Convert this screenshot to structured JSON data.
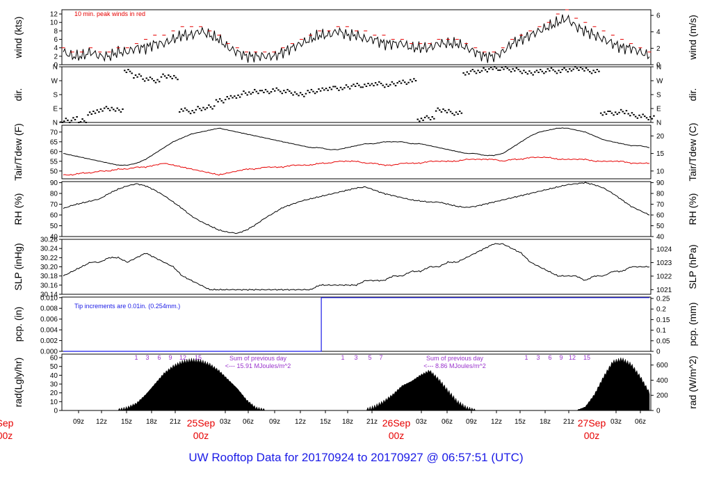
{
  "title": "UW Rooftop Data for 20170924  to  20170927 @ 06:57:51  (UTC)",
  "colors": {
    "black": "#000000",
    "red": "#e60000",
    "blue": "#1a1ae6",
    "purple": "#9932cc"
  },
  "chart_data": [
    {
      "type": "line",
      "ylabel": "wind (kts)",
      "ylabel_right": "wind (m/s)",
      "yticks": [
        0,
        2,
        4,
        6,
        8,
        10,
        12
      ],
      "yticks_right": [
        0,
        2,
        4,
        6
      ],
      "ylim": [
        0,
        13
      ],
      "annotations": [
        "10 min. peak winds in red"
      ],
      "series": [
        {
          "role": "wind",
          "color": "#000000",
          "values": [
            3,
            2,
            2,
            3,
            2,
            2,
            3,
            3,
            4,
            4,
            5,
            5,
            6,
            7,
            7,
            8,
            7,
            6,
            4,
            3,
            2,
            2,
            2,
            2,
            3,
            4,
            5,
            6,
            7,
            7,
            8,
            7,
            7,
            6,
            6,
            5,
            5,
            5,
            4,
            4,
            4,
            5,
            5,
            5,
            4,
            3,
            2,
            2,
            3,
            5,
            6,
            7,
            8,
            9,
            10,
            11,
            9,
            8,
            7,
            6,
            5,
            4,
            4,
            3,
            2
          ]
        },
        {
          "role": "peak",
          "color": "#e60000",
          "values": [
            4,
            3,
            3,
            4,
            3,
            3,
            4,
            4,
            5,
            6,
            7,
            7,
            8,
            9,
            9,
            9,
            8,
            7,
            5,
            4,
            3,
            3,
            3,
            3,
            4,
            5,
            6,
            7,
            8,
            8,
            9,
            9,
            8,
            8,
            7,
            7,
            6,
            6,
            5,
            5,
            5,
            6,
            6,
            6,
            5,
            4,
            3,
            3,
            4,
            6,
            7,
            8,
            9,
            10,
            12,
            13,
            11,
            10,
            9,
            8,
            7,
            6,
            5,
            4,
            3
          ]
        }
      ]
    },
    {
      "type": "scatter",
      "ylabel": "dir.",
      "ylabel_right": "dir.",
      "yticks": [
        "N",
        "E",
        "S",
        "W",
        "N"
      ],
      "ylim": [
        0,
        360
      ],
      "values": [
        20,
        30,
        10,
        60,
        80,
        90,
        80,
        330,
        300,
        280,
        270,
        300,
        290,
        80,
        70,
        90,
        100,
        140,
        160,
        170,
        190,
        200,
        200,
        210,
        200,
        190,
        180,
        200,
        210,
        220,
        220,
        230,
        240,
        240,
        250,
        240,
        250,
        260,
        270,
        20,
        30,
        80,
        70,
        60,
        320,
        330,
        340,
        350,
        350,
        340,
        330,
        320,
        330,
        340,
        330,
        340,
        350,
        340,
        330,
        60,
        60,
        70,
        50,
        40,
        30
      ]
    },
    {
      "type": "line",
      "ylabel": "Tair/Tdew (F)",
      "ylabel_right": "Tair/Tdew (C)",
      "yticks": [
        50,
        55,
        60,
        65,
        70
      ],
      "yticks_right": [
        10,
        15,
        20
      ],
      "ylim": [
        46,
        73.5
      ],
      "series": [
        {
          "role": "air temperature",
          "color": "#000000",
          "values": [
            59,
            58,
            57,
            56,
            55,
            54,
            53,
            53,
            54,
            56,
            59,
            62,
            65,
            67,
            69,
            70,
            71,
            72,
            71,
            70,
            69,
            68,
            67,
            66,
            65,
            64,
            63,
            62,
            62,
            61,
            61,
            62,
            63,
            64,
            64,
            65,
            65,
            65,
            64,
            64,
            63,
            62,
            61,
            60,
            59,
            59,
            58,
            58,
            59,
            62,
            65,
            68,
            70,
            71,
            72,
            72,
            71,
            70,
            68,
            66,
            65,
            64,
            63,
            63,
            62
          ]
        },
        {
          "role": "dew point",
          "color": "#e60000",
          "values": [
            48,
            48,
            49,
            49,
            50,
            50,
            51,
            51,
            52,
            52,
            53,
            54,
            53,
            52,
            51,
            50,
            49,
            48,
            49,
            50,
            51,
            51,
            52,
            52,
            52,
            53,
            53,
            53,
            54,
            54,
            55,
            55,
            55,
            54,
            54,
            53,
            53,
            54,
            54,
            54,
            55,
            55,
            55,
            55,
            56,
            56,
            56,
            56,
            55,
            56,
            56,
            57,
            57,
            57,
            56,
            56,
            56,
            56,
            55,
            55,
            55,
            55,
            54,
            54,
            54
          ]
        }
      ]
    },
    {
      "type": "line",
      "ylabel": "RH (%)",
      "ylabel_right": "RH (%)",
      "yticks": [
        40,
        50,
        60,
        70,
        80,
        90
      ],
      "ylim": [
        40,
        91
      ],
      "series": [
        {
          "role": "relative humidity",
          "color": "#000000",
          "values": [
            66,
            69,
            71,
            73,
            75,
            80,
            84,
            87,
            89,
            87,
            83,
            78,
            72,
            66,
            59,
            54,
            50,
            46,
            44,
            43,
            46,
            51,
            57,
            62,
            67,
            70,
            73,
            75,
            77,
            79,
            81,
            83,
            85,
            86,
            83,
            80,
            78,
            76,
            74,
            73,
            72,
            72,
            70,
            68,
            67,
            68,
            70,
            72,
            74,
            76,
            78,
            80,
            82,
            84,
            86,
            88,
            89,
            90,
            88,
            85,
            80,
            74,
            68,
            64,
            60
          ]
        }
      ]
    },
    {
      "type": "line",
      "ylabel": "SLP (inHg)",
      "ylabel_right": "SLP (hPa)",
      "yticks": [
        30.14,
        30.16,
        30.18,
        30.2,
        30.22,
        30.24,
        30.26
      ],
      "yticks_right": [
        1021,
        1022,
        1023,
        1024
      ],
      "ylim": [
        30.14,
        30.26
      ],
      "series": [
        {
          "role": "sea level pressure",
          "color": "#000000",
          "values": [
            30.18,
            30.19,
            30.2,
            30.21,
            30.21,
            30.22,
            30.22,
            30.21,
            30.22,
            30.23,
            30.22,
            30.21,
            30.2,
            30.18,
            30.17,
            30.16,
            30.15,
            30.15,
            30.15,
            30.15,
            30.15,
            30.15,
            30.15,
            30.15,
            30.15,
            30.15,
            30.15,
            30.15,
            30.16,
            30.16,
            30.16,
            30.16,
            30.16,
            30.17,
            30.17,
            30.17,
            30.18,
            30.18,
            30.19,
            30.19,
            30.2,
            30.2,
            30.21,
            30.21,
            30.22,
            30.23,
            30.24,
            30.25,
            30.25,
            30.24,
            30.23,
            30.21,
            30.2,
            30.19,
            30.18,
            30.18,
            30.18,
            30.17,
            30.18,
            30.18,
            30.19,
            30.19,
            30.2,
            30.2,
            30.2
          ]
        }
      ]
    },
    {
      "type": "line",
      "ylabel": "pcp. (in)",
      "ylabel_right": "pcp. (mm)",
      "yticks": [
        0,
        0.002,
        0.004,
        0.006,
        0.008,
        0.01
      ],
      "yticks_right": [
        0,
        0.05,
        0.1,
        0.15,
        0.2,
        0.25
      ],
      "ylim": [
        0,
        0.0101
      ],
      "annotations": [
        "Tip increments are 0.01in. (0.254mm.)"
      ],
      "series": [
        {
          "role": "precipitation",
          "color": "#1a1ae6",
          "x": [
            0,
            40.5,
            40.5,
            92
          ],
          "values": [
            0,
            0,
            0.01,
            0.01
          ]
        }
      ]
    },
    {
      "type": "area",
      "ylabel": "rad(Lgly/hr)",
      "ylabel_right": "rad (W/m^2)",
      "yticks": [
        0,
        10,
        20,
        30,
        40,
        50,
        60
      ],
      "yticks_right": [
        0,
        200,
        400,
        600
      ],
      "ylim": [
        0,
        64
      ],
      "values": [
        0,
        0,
        0,
        0,
        0,
        0,
        0,
        3,
        8,
        18,
        30,
        42,
        50,
        55,
        57,
        56,
        52,
        45,
        35,
        25,
        12,
        3,
        0,
        0,
        0,
        0,
        0,
        0,
        0,
        0,
        0,
        0,
        0,
        0,
        4,
        10,
        18,
        28,
        33,
        40,
        45,
        35,
        22,
        10,
        3,
        0,
        0,
        0,
        0,
        0,
        0,
        0,
        0,
        0,
        0,
        0,
        0,
        4,
        18,
        38,
        55,
        58,
        52,
        38,
        20
      ],
      "annotations": [
        "Sum of previous day",
        "<--- 15.91 MJoules/m^2",
        "Sum of previous day",
        "<--- 8.86 MJoules/m^2"
      ],
      "hour_marks": [
        "1",
        "3",
        "6",
        "9",
        "12",
        "15",
        "1",
        "3",
        "5",
        "7",
        "1",
        "3",
        "6",
        "9",
        "12",
        "15"
      ]
    }
  ],
  "x_axis": {
    "hour_ticks": [
      "09z",
      "12z",
      "15z",
      "18z",
      "21z",
      "03z",
      "06z",
      "09z",
      "12z",
      "15z",
      "18z",
      "21z",
      "03z",
      "06z",
      "09z",
      "12z",
      "15z",
      "18z",
      "21z",
      "03z",
      "06z"
    ],
    "days": [
      {
        "label": "25Sep",
        "sub": "00z"
      },
      {
        "label": "26Sep",
        "sub": "00z"
      },
      {
        "label": "27Sep",
        "sub": "00z"
      },
      {
        "label": "Sep",
        "sub": "00z"
      }
    ]
  }
}
